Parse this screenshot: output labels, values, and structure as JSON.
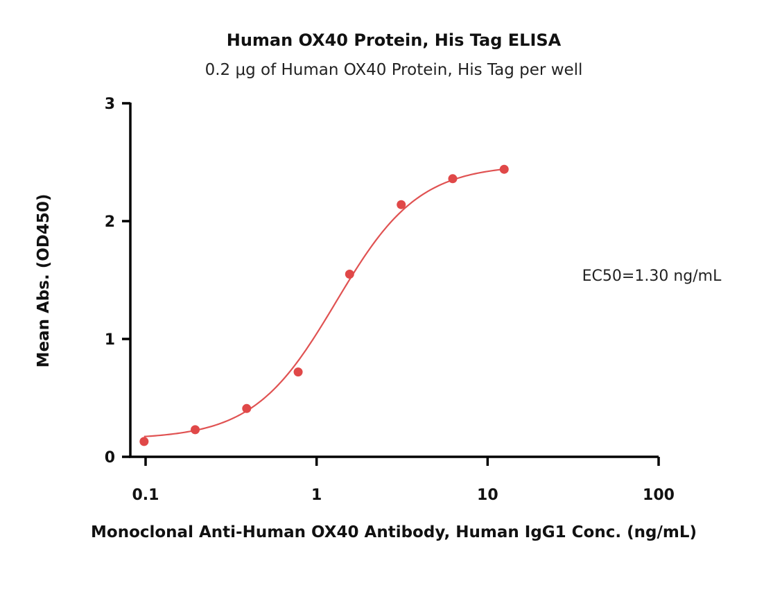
{
  "chart_data": {
    "type": "scatter",
    "title": "Human OX40 Protein, His Tag ELISA",
    "subtitle": "0.2 μg of Human OX40 Protein, His Tag per well",
    "xlabel": "Monoclonal Anti-Human OX40 Antibody, Human IgG1 Conc. (ng/mL)",
    "ylabel": "Mean Abs. (OD450)",
    "xscale": "log",
    "xlim": [
      0.08,
      100
    ],
    "ylim": [
      0,
      3
    ],
    "xticks": [
      0.1,
      1,
      10,
      100
    ],
    "xtick_labels": [
      "0.1",
      "1",
      "10",
      "100"
    ],
    "yticks": [
      0,
      1,
      2,
      3
    ],
    "ytick_labels": [
      "0",
      "1",
      "2",
      "3"
    ],
    "series": [
      {
        "name": "OD450",
        "color": "#e04848",
        "x": [
          0.098,
          0.195,
          0.39,
          0.78,
          1.56,
          3.125,
          6.25,
          12.5
        ],
        "y": [
          0.13,
          0.23,
          0.41,
          0.72,
          1.55,
          2.14,
          2.36,
          2.44
        ]
      }
    ],
    "fit": {
      "model": "4PL",
      "bottom": 0.15,
      "top": 2.48,
      "ec50": 1.3,
      "hill": 1.8,
      "x_range": [
        0.098,
        12.5
      ]
    },
    "annotation": "EC50=1.30 ng/mL",
    "grid": false
  }
}
